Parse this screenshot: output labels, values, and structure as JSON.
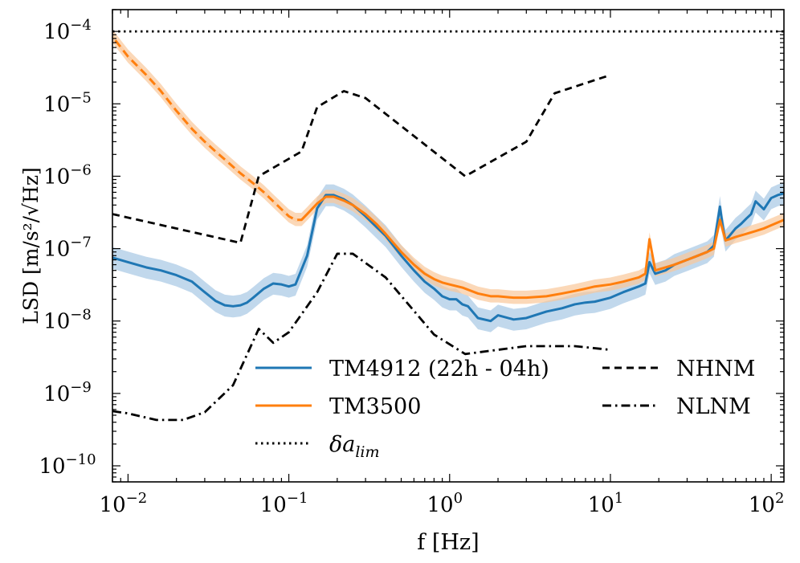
{
  "chart_data": {
    "type": "line",
    "title": "",
    "xlabel": "f [Hz]",
    "ylabel": "LSD [m/s²/√Hz]",
    "xscale": "log",
    "yscale": "log",
    "xlim": [
      0.008,
      120
    ],
    "ylim": [
      6e-11,
      0.0002
    ],
    "grid": false,
    "legend": {
      "placement": "lower-right",
      "columns": 2
    },
    "x_ticks": [
      {
        "value": 0.01,
        "base": "10",
        "exp": "−2"
      },
      {
        "value": 0.1,
        "base": "10",
        "exp": "−1"
      },
      {
        "value": 1,
        "base": "10",
        "exp": "0"
      },
      {
        "value": 10,
        "base": "10",
        "exp": "1"
      },
      {
        "value": 100,
        "base": "10",
        "exp": "2"
      }
    ],
    "y_ticks": [
      {
        "value": 1e-10,
        "base": "10",
        "exp": "−10"
      },
      {
        "value": 1e-09,
        "base": "10",
        "exp": "−9"
      },
      {
        "value": 1e-08,
        "base": "10",
        "exp": "−8"
      },
      {
        "value": 1e-07,
        "base": "10",
        "exp": "−7"
      },
      {
        "value": 1e-06,
        "base": "10",
        "exp": "−6"
      },
      {
        "value": 1e-05,
        "base": "10",
        "exp": "−5"
      },
      {
        "value": 0.0001,
        "base": "10",
        "exp": "−4"
      }
    ],
    "series": [
      {
        "name": "TM4912 (22h - 04h)",
        "color": "#1f77b4",
        "style": "solid",
        "band_color": "#a6c8e4",
        "x": [
          0.008,
          0.01,
          0.013,
          0.016,
          0.02,
          0.025,
          0.03,
          0.035,
          0.04,
          0.045,
          0.05,
          0.055,
          0.06,
          0.07,
          0.08,
          0.09,
          0.1,
          0.11,
          0.13,
          0.15,
          0.17,
          0.19,
          0.22,
          0.25,
          0.3,
          0.35,
          0.4,
          0.5,
          0.6,
          0.7,
          0.8,
          0.9,
          1.0,
          1.1,
          1.2,
          1.3,
          1.5,
          1.8,
          2.0,
          2.5,
          3.0,
          4.0,
          5.0,
          6.0,
          7.0,
          8.0,
          10,
          12,
          15,
          16.5,
          17.5,
          19,
          22,
          25,
          30,
          35,
          40,
          44,
          48,
          50,
          52,
          55,
          60,
          65,
          70,
          75,
          80,
          90,
          100,
          110,
          120
        ],
        "values": [
          7.5e-08,
          6.5e-08,
          5.5e-08,
          5e-08,
          4.3e-08,
          3.5e-08,
          2.5e-08,
          1.9e-08,
          1.65e-08,
          1.6e-08,
          1.65e-08,
          1.8e-08,
          2.1e-08,
          2.8e-08,
          3.3e-08,
          3.2e-08,
          3e-08,
          3.2e-08,
          8e-08,
          3.6e-07,
          5.5e-07,
          5.5e-07,
          4.8e-07,
          4e-07,
          2.8e-07,
          2e-07,
          1.5e-07,
          8e-08,
          5e-08,
          3.5e-08,
          2.8e-08,
          2.2e-08,
          2e-08,
          2e-08,
          1.7e-08,
          1.6e-08,
          1.1e-08,
          1e-08,
          1.2e-08,
          1.05e-08,
          1.1e-08,
          1.35e-08,
          1.5e-08,
          1.7e-08,
          1.8e-08,
          1.85e-08,
          2.1e-08,
          2.5e-08,
          3e-08,
          3.3e-08,
          6.5e-08,
          4.5e-08,
          5e-08,
          6e-08,
          7e-08,
          8e-08,
          9e-08,
          1.1e-07,
          3.8e-07,
          2e-07,
          1.3e-07,
          1.5e-07,
          1.9e-07,
          2.2e-07,
          2.6e-07,
          3e-07,
          4.5e-07,
          3.5e-07,
          5e-07,
          5.5e-07,
          5.8e-07
        ],
        "band_low_factor": 0.7,
        "band_high_factor": 1.4
      },
      {
        "name": "TM3500",
        "color": "#ff7f0e",
        "style": "solid",
        "band_color": "#f9c79a",
        "x": [
          0.008,
          0.01,
          0.013,
          0.016,
          0.02,
          0.025,
          0.03,
          0.035,
          0.04,
          0.05,
          0.06,
          0.07,
          0.08,
          0.09,
          0.1,
          0.11,
          0.12,
          0.13,
          0.15,
          0.17,
          0.19,
          0.22,
          0.25,
          0.3,
          0.35,
          0.4,
          0.5,
          0.6,
          0.7,
          0.8,
          0.9,
          1.0,
          1.2,
          1.5,
          1.8,
          2.0,
          2.5,
          3.0,
          4.0,
          5.0,
          6.0,
          7.0,
          8.0,
          10,
          12,
          15,
          16.5,
          17.5,
          19,
          22,
          25,
          30,
          35,
          40,
          44,
          48,
          50,
          52,
          55,
          60,
          70,
          80,
          90,
          100,
          120
        ],
        "values": [
          8.5e-05,
          4.5e-05,
          2.5e-05,
          1.5e-05,
          8e-06,
          4.5e-06,
          3e-06,
          2.2e-06,
          1.7e-06,
          1.1e-06,
          8e-07,
          6e-07,
          4.5e-07,
          3.5e-07,
          2.8e-07,
          2.5e-07,
          2.5e-07,
          3e-07,
          4.2e-07,
          5.2e-07,
          5.2e-07,
          4.6e-07,
          4e-07,
          3e-07,
          2.2e-07,
          1.6e-07,
          9e-08,
          6e-08,
          4.5e-08,
          3.8e-08,
          3.4e-08,
          3.2e-08,
          2.9e-08,
          2.4e-08,
          2.2e-08,
          2.2e-08,
          2.1e-08,
          2.1e-08,
          2.2e-08,
          2.4e-08,
          2.6e-08,
          2.8e-08,
          3e-08,
          3.2e-08,
          3.5e-08,
          4e-08,
          4.5e-08,
          1.35e-07,
          5e-08,
          5.5e-08,
          6e-08,
          7e-08,
          8e-08,
          9e-08,
          1e-07,
          2.5e-07,
          1.8e-07,
          1.3e-07,
          1.35e-07,
          1.45e-07,
          1.6e-07,
          1.75e-07,
          1.9e-07,
          2.1e-07,
          2.5e-07
        ],
        "band_low_factor": 0.82,
        "band_high_factor": 1.25
      },
      {
        "name": "δa_lim",
        "color": "#000000",
        "style": "dotted",
        "x": [
          0.008,
          120
        ],
        "values": [
          0.0001,
          0.0001
        ]
      },
      {
        "name": "NHNM",
        "color": "#000000",
        "style": "dashed",
        "x": [
          0.008,
          0.05,
          0.065,
          0.12,
          0.15,
          0.22,
          0.3,
          1.25,
          3,
          4.5,
          10
        ],
        "values": [
          3e-07,
          1.2e-07,
          1e-06,
          2.2e-06,
          9e-06,
          1.5e-05,
          1.2e-05,
          1e-06,
          3e-06,
          1.4e-05,
          2.5e-05
        ]
      },
      {
        "name": "NLNM",
        "color": "#000000",
        "style": "dashdot",
        "x": [
          0.008,
          0.01,
          0.015,
          0.022,
          0.03,
          0.045,
          0.065,
          0.08,
          0.1,
          0.15,
          0.2,
          0.25,
          0.4,
          0.8,
          1.25,
          3,
          6,
          10
        ],
        "values": [
          5.7e-10,
          5.3e-10,
          4.3e-10,
          4.3e-10,
          5.5e-10,
          1.3e-09,
          7.8e-09,
          5e-09,
          7e-09,
          2.5e-08,
          8.5e-08,
          8.5e-08,
          4e-08,
          6.5e-09,
          3.5e-09,
          4.5e-09,
          4.5e-09,
          4e-09
        ]
      }
    ],
    "legend_entries": [
      {
        "label": "TM4912 (22h - 04h)",
        "series": 0
      },
      {
        "label": "TM3500",
        "series": 1
      },
      {
        "label": "δa",
        "sub": "lim",
        "series": 2
      },
      {
        "label": "NHNM",
        "series": 3
      },
      {
        "label": "NLNM",
        "series": 4
      }
    ]
  }
}
